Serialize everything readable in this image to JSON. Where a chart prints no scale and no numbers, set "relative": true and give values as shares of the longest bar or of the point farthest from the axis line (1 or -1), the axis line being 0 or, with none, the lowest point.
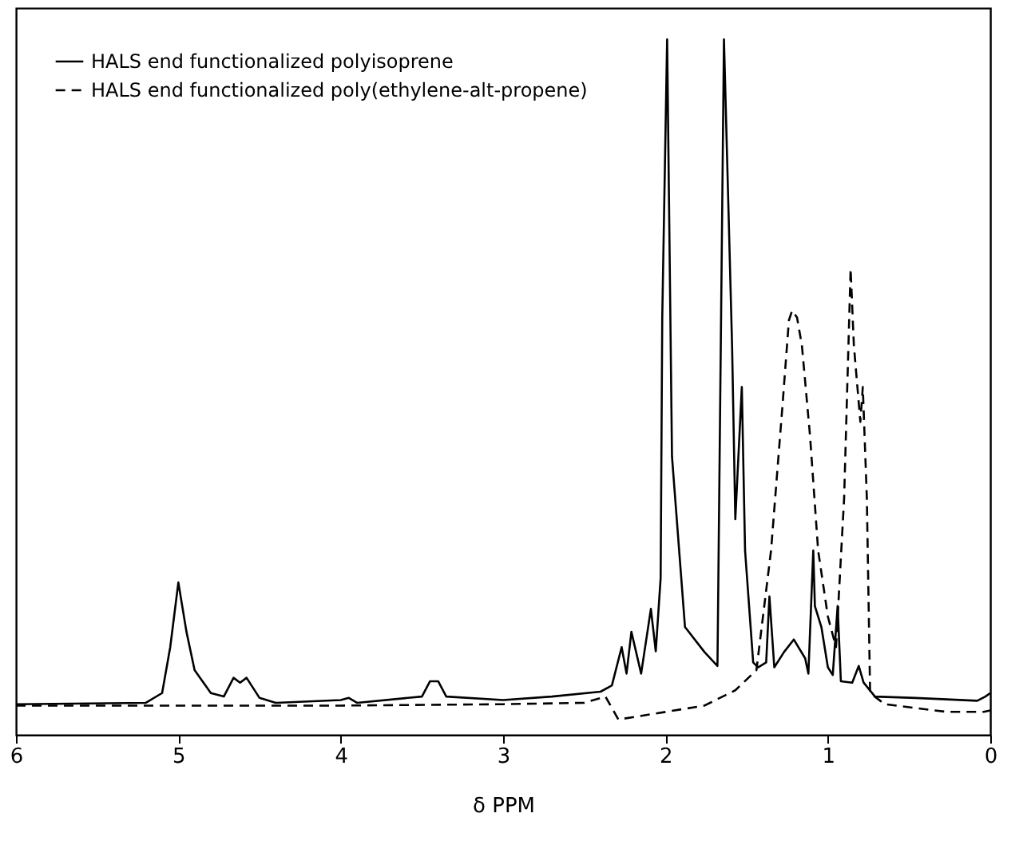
{
  "chart_data": {
    "type": "line",
    "relative": true,
    "xlabel": "δ PPM",
    "xlim": [
      6,
      0
    ],
    "xticks": [
      6,
      5,
      4,
      3,
      2,
      1,
      0
    ],
    "legend": "top left",
    "grid": false,
    "series": [
      {
        "name": "HALS end functionalized polyisoprene",
        "color": "#000000",
        "line_style": "solid",
        "x": [
          6,
          5.2,
          5.1,
          5.05,
          5.0,
          4.95,
          4.9,
          4.8,
          4.72,
          4.66,
          4.62,
          4.58,
          4.5,
          4.4,
          4.0,
          3.95,
          3.9,
          3.5,
          3.45,
          3.4,
          3.35,
          3.0,
          2.7,
          2.4,
          2.33,
          2.27,
          2.24,
          2.21,
          2.15,
          2.09,
          2.06,
          2.03,
          2.02,
          1.99,
          1.96,
          1.88,
          1.76,
          1.68,
          1.64,
          1.59,
          1.57,
          1.53,
          1.51,
          1.46,
          1.43,
          1.38,
          1.36,
          1.33,
          1.27,
          1.21,
          1.14,
          1.12,
          1.09,
          1.08,
          1.04,
          1.0,
          0.97,
          0.94,
          0.92,
          0.85,
          0.81,
          0.78,
          0.71,
          0.46,
          0.08,
          0.03,
          0
        ],
        "values": [
          0.044,
          0.046,
          0.06,
          0.126,
          0.219,
          0.148,
          0.093,
          0.06,
          0.055,
          0.082,
          0.075,
          0.082,
          0.053,
          0.046,
          0.05,
          0.053,
          0.046,
          0.055,
          0.077,
          0.077,
          0.055,
          0.05,
          0.055,
          0.062,
          0.071,
          0.126,
          0.088,
          0.148,
          0.088,
          0.181,
          0.12,
          0.225,
          0.6,
          1.0,
          0.4,
          0.155,
          0.119,
          0.099,
          1.0,
          0.56,
          0.31,
          0.5,
          0.265,
          0.104,
          0.097,
          0.104,
          0.199,
          0.097,
          0.119,
          0.137,
          0.11,
          0.088,
          0.265,
          0.185,
          0.155,
          0.097,
          0.086,
          0.185,
          0.077,
          0.075,
          0.099,
          0.075,
          0.055,
          0.053,
          0.049,
          0.055,
          0.06
        ]
      },
      {
        "name": "HALS end functionalized poly(ethylene-alt-propene)",
        "color": "#000000",
        "line_style": "dashed",
        "x": [
          6,
          4.0,
          3.0,
          2.5,
          2.37,
          2.29,
          2.05,
          1.76,
          1.57,
          1.44,
          1.35,
          1.28,
          1.24,
          1.22,
          1.19,
          1.16,
          1.11,
          1.06,
          1.0,
          0.95,
          0.9,
          0.86,
          0.84,
          0.8,
          0.785,
          0.76,
          0.74,
          0.65,
          0.27,
          0.04,
          0
        ],
        "values": [
          0.042,
          0.042,
          0.044,
          0.046,
          0.055,
          0.022,
          0.031,
          0.042,
          0.064,
          0.093,
          0.265,
          0.472,
          0.596,
          0.61,
          0.6,
          0.56,
          0.43,
          0.265,
          0.17,
          0.126,
          0.34,
          0.67,
          0.56,
          0.45,
          0.5,
          0.34,
          0.06,
          0.044,
          0.033,
          0.033,
          0.035
        ]
      }
    ]
  }
}
